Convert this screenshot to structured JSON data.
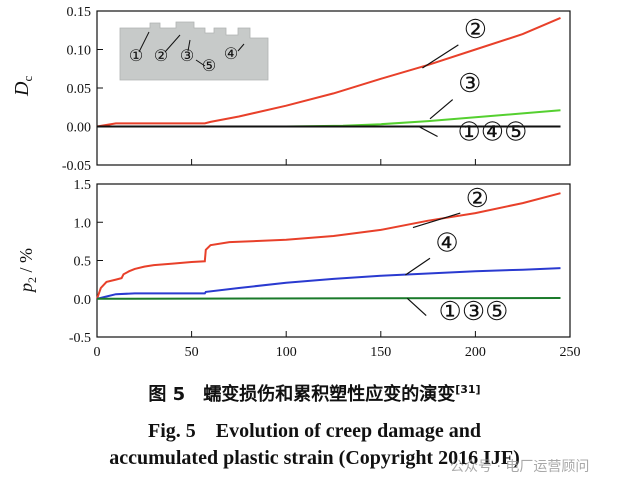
{
  "chart_data": [
    {
      "type": "line",
      "ylabel": "D",
      "ylabel_sub": "c",
      "xlim": [
        0,
        250
      ],
      "ylim": [
        -0.05,
        0.15
      ],
      "xticks": [
        0,
        50,
        100,
        150,
        200,
        250
      ],
      "yticks": [
        -0.05,
        0.0,
        0.05,
        0.1,
        0.15
      ],
      "ytick_labels": [
        "-0.05",
        "0.00",
        "0.05",
        "0.10",
        "0.15"
      ],
      "grid": false,
      "series": [
        {
          "id": "2",
          "color": "#e8402a",
          "x": [
            0,
            10,
            20,
            30,
            40,
            50,
            57,
            60,
            75,
            100,
            125,
            150,
            175,
            200,
            225,
            245
          ],
          "y": [
            0,
            0.004,
            0.004,
            0.004,
            0.004,
            0.004,
            0.004,
            0.006,
            0.013,
            0.027,
            0.043,
            0.062,
            0.08,
            0.1,
            0.12,
            0.141
          ]
        },
        {
          "id": "3",
          "color": "#55d030",
          "x": [
            0,
            100,
            130,
            150,
            175,
            200,
            225,
            245
          ],
          "y": [
            0,
            0,
            0.001,
            0.003,
            0.007,
            0.012,
            0.017,
            0.021
          ]
        },
        {
          "id": "1,4,5",
          "color": "#111111",
          "x": [
            0,
            245
          ],
          "y": [
            0,
            0
          ]
        }
      ],
      "annotations": [
        {
          "text": "②",
          "x": 200,
          "y": 0.115
        },
        {
          "text": "③",
          "x": 197,
          "y": 0.045
        },
        {
          "text": "①④⑤",
          "x": 209,
          "y": -0.018
        }
      ],
      "inset_labels": [
        "①",
        "②",
        "③",
        "④",
        "⑤"
      ]
    },
    {
      "type": "line",
      "ylabel": "p",
      "ylabel_sub": "2",
      "ylabel_unit": " / %",
      "xlim": [
        0,
        250
      ],
      "ylim": [
        -0.5,
        1.5
      ],
      "xticks": [
        0,
        50,
        100,
        150,
        200,
        250
      ],
      "yticks": [
        -0.5,
        0.0,
        0.5,
        1.0,
        1.5
      ],
      "ytick_labels": [
        "-0.5",
        "0.0",
        "0.5",
        "1.0",
        "1.5"
      ],
      "grid": false,
      "series": [
        {
          "id": "2",
          "color": "#e8402a",
          "x": [
            0,
            2,
            5,
            10,
            13,
            14,
            17,
            20,
            25,
            30,
            40,
            50,
            57,
            57.5,
            60,
            70,
            80,
            100,
            125,
            150,
            175,
            200,
            225,
            245
          ],
          "y": [
            0,
            0.14,
            0.22,
            0.25,
            0.27,
            0.32,
            0.36,
            0.39,
            0.42,
            0.44,
            0.46,
            0.48,
            0.49,
            0.64,
            0.7,
            0.74,
            0.75,
            0.77,
            0.82,
            0.9,
            1.02,
            1.12,
            1.25,
            1.38
          ]
        },
        {
          "id": "4",
          "color": "#2a3ad0",
          "x": [
            0,
            5,
            10,
            20,
            40,
            57,
            57.5,
            75,
            100,
            125,
            150,
            175,
            200,
            225,
            245
          ],
          "y": [
            0,
            0.03,
            0.06,
            0.07,
            0.07,
            0.07,
            0.09,
            0.14,
            0.21,
            0.26,
            0.3,
            0.33,
            0.36,
            0.38,
            0.4
          ]
        },
        {
          "id": "1,3,5",
          "color": "#1a7a2a",
          "x": [
            0,
            245
          ],
          "y": [
            0,
            0.01
          ]
        }
      ],
      "annotations": [
        {
          "text": "②",
          "x": 201,
          "y": 1.2
        },
        {
          "text": "④",
          "x": 185,
          "y": 0.62
        },
        {
          "text": "①③⑤",
          "x": 199,
          "y": -0.28
        }
      ]
    }
  ],
  "captions": {
    "cn": "图 5　蠕变损伤和累积塑性应变的演变",
    "cn_ref": "[31]",
    "en_line1": "Fig. 5　Evolution of creep damage and",
    "en_line2": "accumulated plastic strain (Copyright 2016 IJF)"
  },
  "watermark": "公众号 · 电厂运营顾问"
}
